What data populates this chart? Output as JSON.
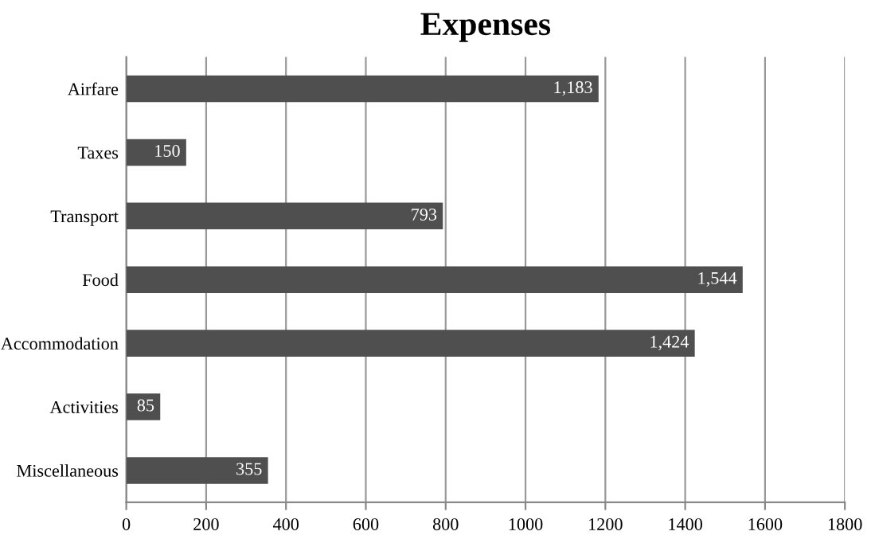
{
  "chart_data": {
    "type": "bar",
    "orientation": "horizontal",
    "title": "Expenses",
    "categories": [
      "Airfare",
      "Taxes",
      "Transport",
      "Food",
      "Accommodation",
      "Activities",
      "Miscellaneous"
    ],
    "values": [
      1183,
      150,
      793,
      1544,
      1424,
      85,
      355
    ],
    "value_labels": [
      "1,183",
      "150",
      "793",
      "1,544",
      "1,424",
      "85",
      "355"
    ],
    "color": "#4f4f4f",
    "xlim": [
      0,
      1800
    ],
    "xticks": [
      0,
      200,
      400,
      600,
      800,
      1000,
      1200,
      1400,
      1600,
      1800
    ],
    "grid": "x",
    "legend": false
  }
}
